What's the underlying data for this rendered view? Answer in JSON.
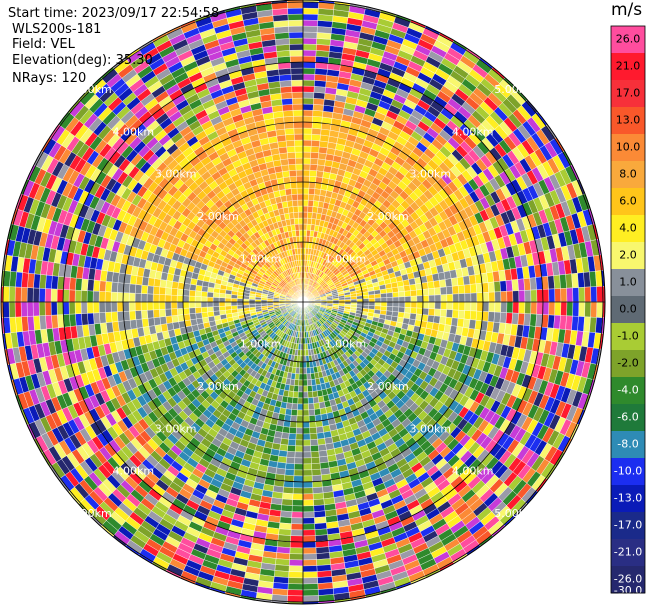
{
  "header": {
    "start_time_label": "Start time:",
    "start_time_value": "2023/09/17 22:54:58",
    "instrument": "WLS200s-181",
    "field_label": "Field:",
    "field_value": "VEL",
    "elevation_label": "Elevation(deg):",
    "elevation_value": "35.30",
    "nrays_label": "NRays:",
    "nrays_value": "120"
  },
  "chart_data": {
    "type": "heatmap",
    "projection": "polar PPI",
    "nrays": 120,
    "range_rings_km": [
      1.0,
      2.0,
      3.0,
      4.0,
      5.0
    ],
    "ring_labels": [
      "1.00km",
      "2.00km",
      "3.00km",
      "4.00km",
      "5.00km"
    ],
    "colorbar": {
      "units": "m/s",
      "tick_labels": [
        "26.0",
        "21.0",
        "17.0",
        "13.0",
        "10.0",
        "8.0",
        "6.0",
        "4.0",
        "2.0",
        "1.0",
        "0.0",
        "-1.0",
        "-2.0",
        "-4.0",
        "-6.0",
        "-8.0",
        "-10.0",
        "-13.0",
        "-17.0",
        "-21.0",
        "-26.0",
        "-30.0"
      ],
      "bands": [
        {
          "color": "#ff4d9e"
        },
        {
          "color": "#ff1a2e"
        },
        {
          "color": "#f7303a"
        },
        {
          "color": "#f9582a"
        },
        {
          "color": "#fb8a36"
        },
        {
          "color": "#f9a93c"
        },
        {
          "color": "#ffc51a"
        },
        {
          "color": "#ffee22"
        },
        {
          "color": "#f8f76e"
        },
        {
          "color": "#88909a"
        },
        {
          "color": "#5f6a74"
        },
        {
          "color": "#a9cc34"
        },
        {
          "color": "#7ea32a"
        },
        {
          "color": "#2f8a2c"
        },
        {
          "color": "#1f7a3a"
        },
        {
          "color": "#2e8bb5"
        },
        {
          "color": "#1c2ef0"
        },
        {
          "color": "#0a1bb8"
        },
        {
          "color": "#1a2a8a"
        },
        {
          "color": "#2a2e84"
        },
        {
          "color": "#25286e"
        }
      ]
    }
  },
  "colors": {
    "up_sector": [
      "#ffb833",
      "#ffc51a",
      "#f9a93c",
      "#ffee22",
      "#fb8a36"
    ],
    "side_sector": [
      "#f8f76e",
      "#ffee22",
      "#7d8590",
      "#88909a",
      "#ffd21c"
    ],
    "down_sector": [
      "#a9cc34",
      "#7ea32a",
      "#2f8a2c",
      "#88909a",
      "#2e8bb5"
    ],
    "noise": [
      "#ff4d9e",
      "#ff1a2e",
      "#f9582a",
      "#ffee22",
      "#1c2ef0",
      "#25286e",
      "#2f8a2c",
      "#a9cc34",
      "#9a9aa8",
      "#f8f76e",
      "#fb8a36",
      "#7ea32a",
      "#0a1bb8",
      "#c73bd8"
    ]
  }
}
